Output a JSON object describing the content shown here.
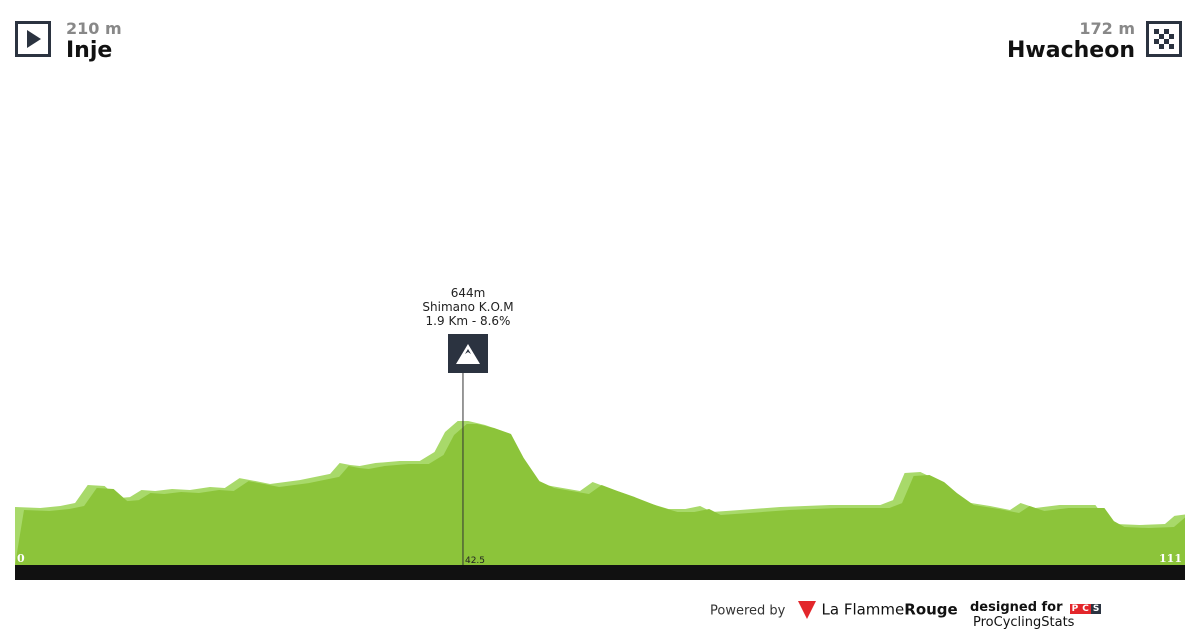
{
  "start": {
    "altitude": "210 m",
    "city": "Inje",
    "icon": "start-flag-icon"
  },
  "finish": {
    "altitude": "172 m",
    "city": "Hwacheon",
    "icon": "checkered-flag-icon"
  },
  "kom": {
    "elevation": "644m",
    "name": "Shimano K.O.M",
    "detail": "1.9 Km - 8.6%",
    "km_label": "42.5",
    "icon": "mountain-icon"
  },
  "footer": {
    "powered_by": "Powered by",
    "brand1_a": "La Flamme",
    "brand1_b": "Rouge",
    "designed_for": "designed for",
    "pcs": [
      "P",
      "C",
      "S"
    ],
    "brand2": "ProCyclingStats"
  },
  "chart_data": {
    "type": "area",
    "xlabel": "",
    "ylabel": "",
    "x_tick_labels": [
      "0",
      "111"
    ],
    "xlim": [
      0,
      111
    ],
    "colors": {
      "fill": "#8cc43a",
      "highlight": "#a8d96a",
      "base_bar": "#111111"
    },
    "points": [
      [
        0,
        210
      ],
      [
        2.4,
        205
      ],
      [
        4.3,
        215
      ],
      [
        5.7,
        230
      ],
      [
        6.9,
        321
      ],
      [
        8.5,
        316
      ],
      [
        9.8,
        255
      ],
      [
        10.9,
        260
      ],
      [
        12.0,
        296
      ],
      [
        13.3,
        291
      ],
      [
        14.9,
        301
      ],
      [
        16.6,
        296
      ],
      [
        18.5,
        311
      ],
      [
        19.9,
        306
      ],
      [
        21.3,
        356
      ],
      [
        22.8,
        341
      ],
      [
        24.2,
        326
      ],
      [
        27.0,
        346
      ],
      [
        29.9,
        377
      ],
      [
        30.8,
        432
      ],
      [
        31.8,
        422
      ],
      [
        32.7,
        417
      ],
      [
        34.2,
        432
      ],
      [
        36.5,
        442
      ],
      [
        38.4,
        442
      ],
      [
        39.8,
        488
      ],
      [
        40.8,
        589
      ],
      [
        42.0,
        644
      ],
      [
        43.0,
        644
      ],
      [
        44.6,
        624
      ],
      [
        46.2,
        594
      ],
      [
        47.4,
        473
      ],
      [
        48.9,
        356
      ],
      [
        50.3,
        321
      ],
      [
        53.6,
        291
      ],
      [
        54.8,
        336
      ],
      [
        56.3,
        306
      ],
      [
        57.9,
        276
      ],
      [
        60.1,
        230
      ],
      [
        62.0,
        200
      ],
      [
        63.6,
        200
      ],
      [
        65.0,
        215
      ],
      [
        66.1,
        185
      ],
      [
        68.8,
        195
      ],
      [
        72.6,
        210
      ],
      [
        77.3,
        220
      ],
      [
        82.1,
        220
      ],
      [
        83.3,
        245
      ],
      [
        84.4,
        382
      ],
      [
        85.9,
        387
      ],
      [
        87.3,
        351
      ],
      [
        88.5,
        296
      ],
      [
        90.1,
        235
      ],
      [
        92.5,
        215
      ],
      [
        94.4,
        195
      ],
      [
        95.4,
        230
      ],
      [
        96.8,
        205
      ],
      [
        99.1,
        220
      ],
      [
        102.5,
        220
      ],
      [
        103.4,
        154
      ],
      [
        104.4,
        124
      ],
      [
        106.7,
        119
      ],
      [
        109.1,
        124
      ],
      [
        110.0,
        165
      ],
      [
        111,
        172
      ]
    ],
    "kom_km": 42.5
  }
}
